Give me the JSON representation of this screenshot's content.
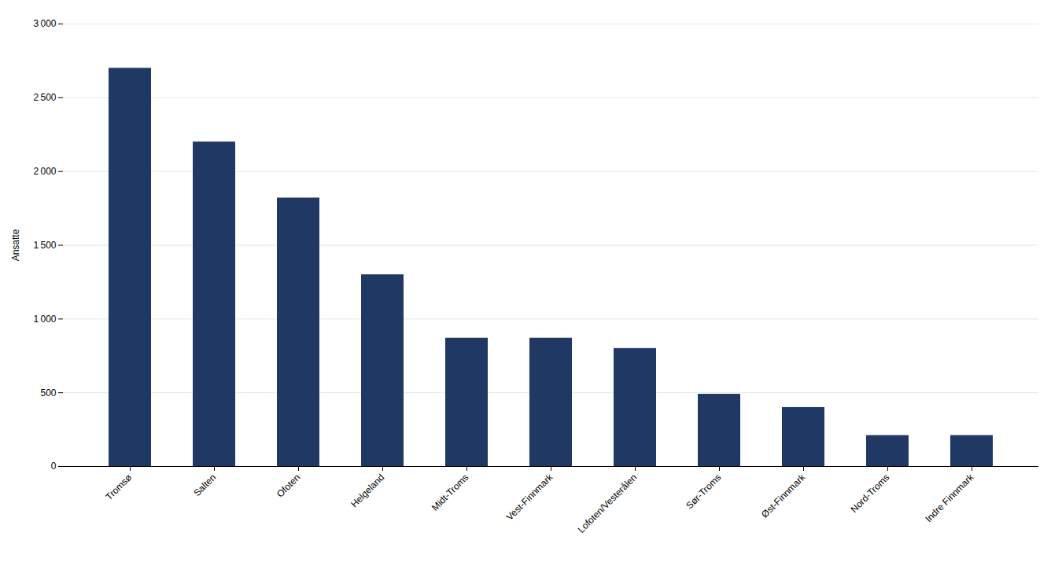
{
  "chart_data": {
    "type": "bar",
    "categories": [
      "Tromsø",
      "Salten",
      "Ofoten",
      "Helgeland",
      "Midt-Troms",
      "Vest-Finnmark",
      "Lofoten/Vesterålen",
      "Sør-Troms",
      "Øst-Finnmark",
      "Nord-Troms",
      "Indre Finnmark"
    ],
    "values": [
      2700,
      2200,
      1820,
      1300,
      870,
      870,
      800,
      490,
      400,
      210,
      210
    ],
    "color": "#1F3864",
    "ylabel": "Ansatte",
    "ylim": [
      0,
      3000
    ],
    "yticks": [
      0,
      500,
      {
        "value": 1000,
        "label": "1 000"
      },
      {
        "value": 1500,
        "label": "1 500"
      },
      {
        "value": 2000,
        "label": "2 000"
      },
      {
        "value": 2500,
        "label": "2 500"
      },
      {
        "value": 3000,
        "label": "3 000"
      }
    ],
    "grid": true
  }
}
